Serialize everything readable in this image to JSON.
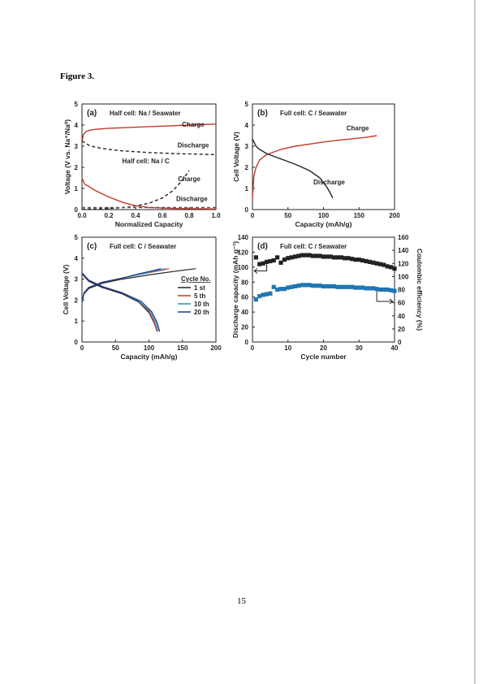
{
  "page": {
    "figure_label": "Figure 3.",
    "page_number": "15"
  },
  "colors": {
    "red": "#c0392b",
    "black": "#222222",
    "blue": "#1f77b4",
    "teal": "#1f8fbf",
    "navy": "#1f3a8a",
    "dash": "#555555"
  },
  "chart_data": [
    {
      "id": "a",
      "type": "line",
      "panel_label": "(a)",
      "annotation_top": "Half cell: Na / Seawater",
      "annotation_bottom": "Half cell: Na / C",
      "xlabel": "Normalized Capacity",
      "ylabel": "Voltage (V vs. Na⁺/Na⁰)",
      "xlim": [
        0,
        1.0
      ],
      "ylim": [
        0,
        5
      ],
      "xticks": [
        "0.0",
        "0.2",
        "0.4",
        "0.6",
        "0.8",
        "1.0"
      ],
      "yticks": [
        "0",
        "1",
        "2",
        "3",
        "4",
        "5"
      ],
      "series": [
        {
          "name": "Charge",
          "style": "solid",
          "color": "red",
          "x": [
            0,
            0.01,
            0.03,
            0.06,
            0.1,
            0.2,
            0.4,
            0.6,
            0.8,
            1.0
          ],
          "y": [
            3.2,
            3.55,
            3.7,
            3.76,
            3.8,
            3.85,
            3.9,
            3.95,
            4.0,
            4.05
          ]
        },
        {
          "name": "Discharge",
          "style": "dashed",
          "color": "black",
          "x": [
            0,
            0.05,
            0.1,
            0.2,
            0.3,
            0.5,
            0.7,
            0.9,
            1.0
          ],
          "y": [
            3.25,
            3.05,
            2.95,
            2.85,
            2.78,
            2.7,
            2.65,
            2.62,
            2.6
          ]
        },
        {
          "name": "Charge",
          "style": "dashed",
          "color": "black",
          "x": [
            0,
            0.2,
            0.35,
            0.5,
            0.6,
            0.68,
            0.75,
            0.8
          ],
          "y": [
            0.02,
            0.05,
            0.12,
            0.3,
            0.55,
            0.9,
            1.4,
            1.85
          ]
        },
        {
          "name": "Discharge",
          "style": "solid",
          "color": "red",
          "x": [
            0,
            0.02,
            0.05,
            0.1,
            0.2,
            0.3,
            0.4,
            0.5,
            0.7,
            1.0
          ],
          "y": [
            1.5,
            1.2,
            1.1,
            0.9,
            0.6,
            0.35,
            0.18,
            0.1,
            0.05,
            0.03
          ]
        },
        {
          "name": "",
          "style": "dashed",
          "color": "dash",
          "x": [
            0,
            1.0
          ],
          "y": [
            0.1,
            0.1
          ]
        }
      ],
      "labels": [
        {
          "text": "Charge",
          "x": 0.83,
          "y": 3.92
        },
        {
          "text": "Discharge",
          "x": 0.83,
          "y": 2.95
        },
        {
          "text": "Charge",
          "x": 0.8,
          "y": 1.35
        },
        {
          "text": "Discharge",
          "x": 0.82,
          "y": 0.4
        }
      ]
    },
    {
      "id": "b",
      "type": "line",
      "panel_label": "(b)",
      "annotation_top": "Full cell: C / Seawater",
      "xlabel": "Capacity (mAh/g)",
      "ylabel": "Cell Voltage (V)",
      "xlim": [
        0,
        200
      ],
      "ylim": [
        0,
        5
      ],
      "xticks": [
        "0",
        "50",
        "100",
        "150",
        "200"
      ],
      "yticks": [
        "0",
        "1",
        "2",
        "3",
        "4",
        "5"
      ],
      "series": [
        {
          "name": "Charge",
          "style": "solid",
          "color": "red",
          "x": [
            0,
            2,
            5,
            10,
            20,
            40,
            60,
            80,
            100,
            120,
            140,
            160,
            175
          ],
          "y": [
            0.5,
            1.6,
            2.0,
            2.35,
            2.6,
            2.85,
            3.0,
            3.1,
            3.2,
            3.28,
            3.35,
            3.42,
            3.5
          ]
        },
        {
          "name": "Discharge",
          "style": "solid",
          "color": "black",
          "x": [
            0,
            5,
            10,
            20,
            40,
            60,
            80,
            95,
            105,
            110,
            113
          ],
          "y": [
            3.35,
            3.0,
            2.85,
            2.65,
            2.4,
            2.15,
            1.85,
            1.5,
            1.05,
            0.75,
            0.55
          ]
        }
      ],
      "labels": [
        {
          "text": "Charge",
          "x": 148,
          "y": 3.75
        },
        {
          "text": "Discharge",
          "x": 108,
          "y": 1.2
        }
      ]
    },
    {
      "id": "c",
      "type": "line",
      "panel_label": "(c)",
      "annotation_top": "Full cell: C / Seawater",
      "xlabel": "Capacity (mAh/g)",
      "ylabel": "Cell Voltage (V)",
      "xlim": [
        0,
        200
      ],
      "ylim": [
        0,
        5
      ],
      "xticks": [
        "0",
        "50",
        "100",
        "150",
        "200"
      ],
      "yticks": [
        "0",
        "1",
        "2",
        "3",
        "4",
        "5"
      ],
      "legend_title": "Cycle No.",
      "series": [
        {
          "name": "1 st",
          "color": "black",
          "charge": {
            "x": [
              0,
              3,
              10,
              30,
              60,
              100,
              140,
              170
            ],
            "y": [
              1.9,
              2.3,
              2.55,
              2.8,
              3.0,
              3.2,
              3.38,
              3.5
            ]
          },
          "discharge": {
            "x": [
              0,
              10,
              30,
              60,
              85,
              100,
              108,
              112
            ],
            "y": [
              3.25,
              2.9,
              2.6,
              2.3,
              1.9,
              1.4,
              0.9,
              0.5
            ]
          }
        },
        {
          "name": "5 th",
          "color": "red",
          "charge": {
            "x": [
              0,
              3,
              10,
              30,
              60,
              90,
              115,
              130
            ],
            "y": [
              1.9,
              2.35,
              2.6,
              2.85,
              3.05,
              3.25,
              3.4,
              3.5
            ]
          },
          "discharge": {
            "x": [
              0,
              10,
              30,
              60,
              85,
              100,
              108,
              112
            ],
            "y": [
              3.3,
              2.95,
              2.65,
              2.35,
              1.95,
              1.45,
              0.95,
              0.5
            ]
          }
        },
        {
          "name": "10 th",
          "color": "teal",
          "charge": {
            "x": [
              0,
              3,
              10,
              30,
              60,
              90,
              110,
              125
            ],
            "y": [
              1.9,
              2.35,
              2.6,
              2.85,
              3.05,
              3.25,
              3.4,
              3.5
            ]
          },
          "discharge": {
            "x": [
              0,
              10,
              30,
              60,
              85,
              102,
              110,
              114
            ],
            "y": [
              3.3,
              2.95,
              2.65,
              2.35,
              1.95,
              1.45,
              0.95,
              0.5
            ]
          }
        },
        {
          "name": "20 th",
          "color": "navy",
          "charge": {
            "x": [
              0,
              3,
              10,
              30,
              60,
              85,
              105,
              118
            ],
            "y": [
              1.9,
              2.35,
              2.6,
              2.85,
              3.05,
              3.25,
              3.4,
              3.5
            ]
          },
          "discharge": {
            "x": [
              0,
              10,
              30,
              60,
              88,
              104,
              112,
              116
            ],
            "y": [
              3.3,
              2.95,
              2.65,
              2.35,
              1.95,
              1.45,
              0.95,
              0.5
            ]
          }
        }
      ]
    },
    {
      "id": "d",
      "type": "scatter",
      "panel_label": "(d)",
      "annotation_top": "Full cell: C / Seawater",
      "xlabel": "Cycle number",
      "ylabel": "Discharge capacity (mAh g⁻¹)",
      "ylabel_right": "Coulombic efficiency (%)",
      "xlim": [
        0,
        40
      ],
      "ylim": [
        0,
        140
      ],
      "ylim_right": [
        0,
        160
      ],
      "xticks": [
        "0",
        "10",
        "20",
        "30",
        "40"
      ],
      "yticks": [
        "0",
        "20",
        "40",
        "60",
        "80",
        "100",
        "120",
        "140"
      ],
      "yticks_right": [
        "0",
        "20",
        "40",
        "60",
        "80",
        "100",
        "120",
        "140",
        "160"
      ],
      "series": [
        {
          "name": "Discharge capacity",
          "axis": "left",
          "color": "black",
          "x": [
            1,
            2,
            3,
            4,
            5,
            6,
            7,
            8,
            9,
            10,
            11,
            12,
            13,
            14,
            15,
            16,
            17,
            18,
            19,
            20,
            21,
            22,
            23,
            24,
            25,
            26,
            27,
            28,
            29,
            30,
            31,
            32,
            33,
            34,
            35,
            36,
            37,
            38,
            39,
            40
          ],
          "y": [
            113,
            104,
            105,
            107,
            108,
            109,
            113,
            106,
            110,
            112,
            113,
            114,
            115,
            116,
            116,
            116,
            115,
            115,
            115,
            114,
            114,
            114,
            113,
            113,
            113,
            112,
            112,
            111,
            110,
            110,
            109,
            108,
            107,
            106,
            105,
            104,
            103,
            101,
            100,
            98
          ]
        },
        {
          "name": "Coulombic efficiency",
          "axis": "right",
          "color": "blue",
          "x": [
            1,
            2,
            3,
            4,
            5,
            6,
            7,
            8,
            9,
            10,
            11,
            12,
            13,
            14,
            15,
            16,
            17,
            18,
            19,
            20,
            21,
            22,
            23,
            24,
            25,
            26,
            27,
            28,
            29,
            30,
            31,
            32,
            33,
            34,
            35,
            36,
            37,
            38,
            39,
            40
          ],
          "y": [
            65,
            70,
            72,
            73,
            74,
            84,
            80,
            81,
            81,
            83,
            84,
            85,
            86,
            87,
            87,
            87,
            86,
            86,
            86,
            85,
            85,
            85,
            85,
            84,
            84,
            84,
            84,
            84,
            83,
            83,
            83,
            82,
            82,
            82,
            81,
            80,
            80,
            80,
            79,
            78
          ]
        }
      ]
    }
  ]
}
